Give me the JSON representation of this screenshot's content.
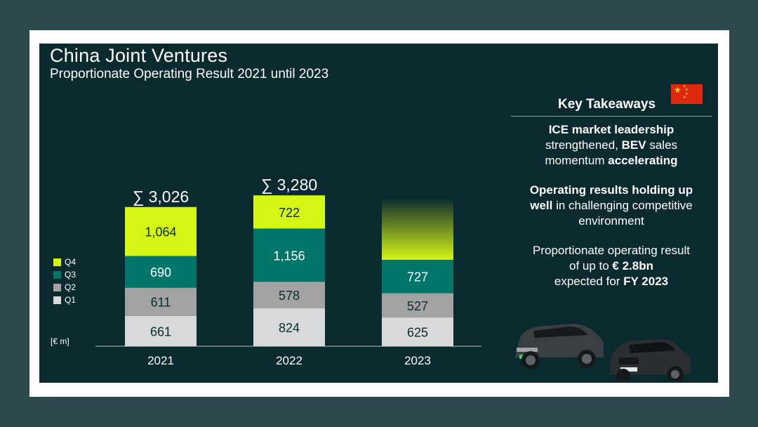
{
  "slide": {
    "title": "China Joint Ventures",
    "subtitle": "Proportionate Operating Result 2021 until 2023"
  },
  "chart_data": {
    "type": "bar",
    "stacked": true,
    "unit": "[€ m]",
    "categories": [
      "2021",
      "2022",
      "2023"
    ],
    "series": [
      {
        "name": "Q1",
        "color": "#d8d9db",
        "values": [
          661,
          824,
          625
        ]
      },
      {
        "name": "Q2",
        "color": "#a3a3a3",
        "values": [
          611,
          578,
          527
        ]
      },
      {
        "name": "Q3",
        "color": "#00756a",
        "values": [
          690,
          1156,
          727
        ]
      },
      {
        "name": "Q4",
        "color": "#d5f516",
        "values": [
          1064,
          722,
          null
        ]
      }
    ],
    "totals": [
      "∑ 3,026",
      "∑ 3,280",
      null
    ],
    "ylim": [
      0,
      3400
    ],
    "legend_position": "left",
    "legend_order": [
      "Q4",
      "Q3",
      "Q2",
      "Q1"
    ],
    "note": "2023 Q4 shown as fading bar (expected)"
  },
  "panel": {
    "title": "Key Takeaways",
    "flag_icon": "china-flag-icon",
    "takeaways": [
      {
        "line1_bold": "ICE market leadership",
        "line2_pre": "strengthened, ",
        "line2_bold": "BEV",
        "line2_post": " sales",
        "line3_pre": "momentum ",
        "line3_bold": "accelerating"
      },
      {
        "line1_bold": "Operating results holding up",
        "line2_bold": "well",
        "line2_post": " in challenging competitive",
        "line3": "environment"
      },
      {
        "line1": "Proportionate operating result",
        "line2_pre": "of up to ",
        "line2_bold": "€ 2.8bn",
        "line3_pre": "expected for ",
        "line3_bold": "FY 2023"
      }
    ]
  },
  "colors": {
    "background": "#2c494d",
    "slide": "#0b2a2f",
    "q4": "#d5f516",
    "q3": "#00756a",
    "q2": "#a3a3a3",
    "q1": "#d8d9db"
  }
}
